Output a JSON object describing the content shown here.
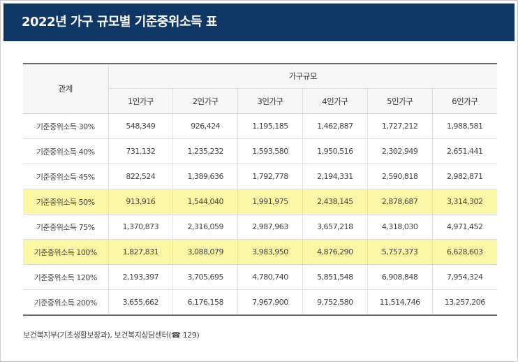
{
  "title": "2022년 가구 규모별 기준중위소득 표",
  "table": {
    "relation_header": "관계",
    "group_header": "가구규모",
    "columns": [
      "1인가구",
      "2인가구",
      "3인가구",
      "4인가구",
      "5인가구",
      "6인가구"
    ],
    "rows": [
      {
        "label": "기준중위소득 30%",
        "highlight": false,
        "values": [
          "548,349",
          "926,424",
          "1,195,185",
          "1,462,887",
          "1,727,212",
          "1,988,581"
        ]
      },
      {
        "label": "기준중위소득 40%",
        "highlight": false,
        "values": [
          "731,132",
          "1,235,232",
          "1,593,580",
          "1,950,516",
          "2,302,949",
          "2,651,441"
        ]
      },
      {
        "label": "기준중위소득 45%",
        "highlight": false,
        "values": [
          "822,524",
          "1,389,636",
          "1,792,778",
          "2,194,331",
          "2,590,818",
          "2,982,871"
        ]
      },
      {
        "label": "기준중위소득 50%",
        "highlight": true,
        "values": [
          "913,916",
          "1,544,040",
          "1,991,975",
          "2,438,145",
          "2,878,687",
          "3,314,302"
        ]
      },
      {
        "label": "기준중위소득 75%",
        "highlight": false,
        "values": [
          "1,370,873",
          "2,316,059",
          "2,987,963",
          "3,657,218",
          "4,318,030",
          "4,971,452"
        ]
      },
      {
        "label": "기준중위소득 100%",
        "highlight": true,
        "values": [
          "1,827,831",
          "3,088,079",
          "3,983,950",
          "4,876,290",
          "5,757,373",
          "6,628,603"
        ]
      },
      {
        "label": "기준중위소득 120%",
        "highlight": false,
        "values": [
          "2,193,397",
          "3,705,695",
          "4,780,740",
          "5,851,548",
          "6,908,848",
          "7,954,324"
        ]
      },
      {
        "label": "기준중위소득 200%",
        "highlight": false,
        "values": [
          "3,655,662",
          "6,176,158",
          "7,967,900",
          "9,752,580",
          "11,514,746",
          "13,257,206"
        ]
      }
    ]
  },
  "source": {
    "text_before": "보건복지부(기초생활보장과), 보건복지상담센터(",
    "phone_icon": "phone-icon",
    "phone_glyph": "☎",
    "text_after": " 129)"
  },
  "colors": {
    "header_bg": "#0f3765",
    "highlight_bg": "#fcf7a4"
  }
}
